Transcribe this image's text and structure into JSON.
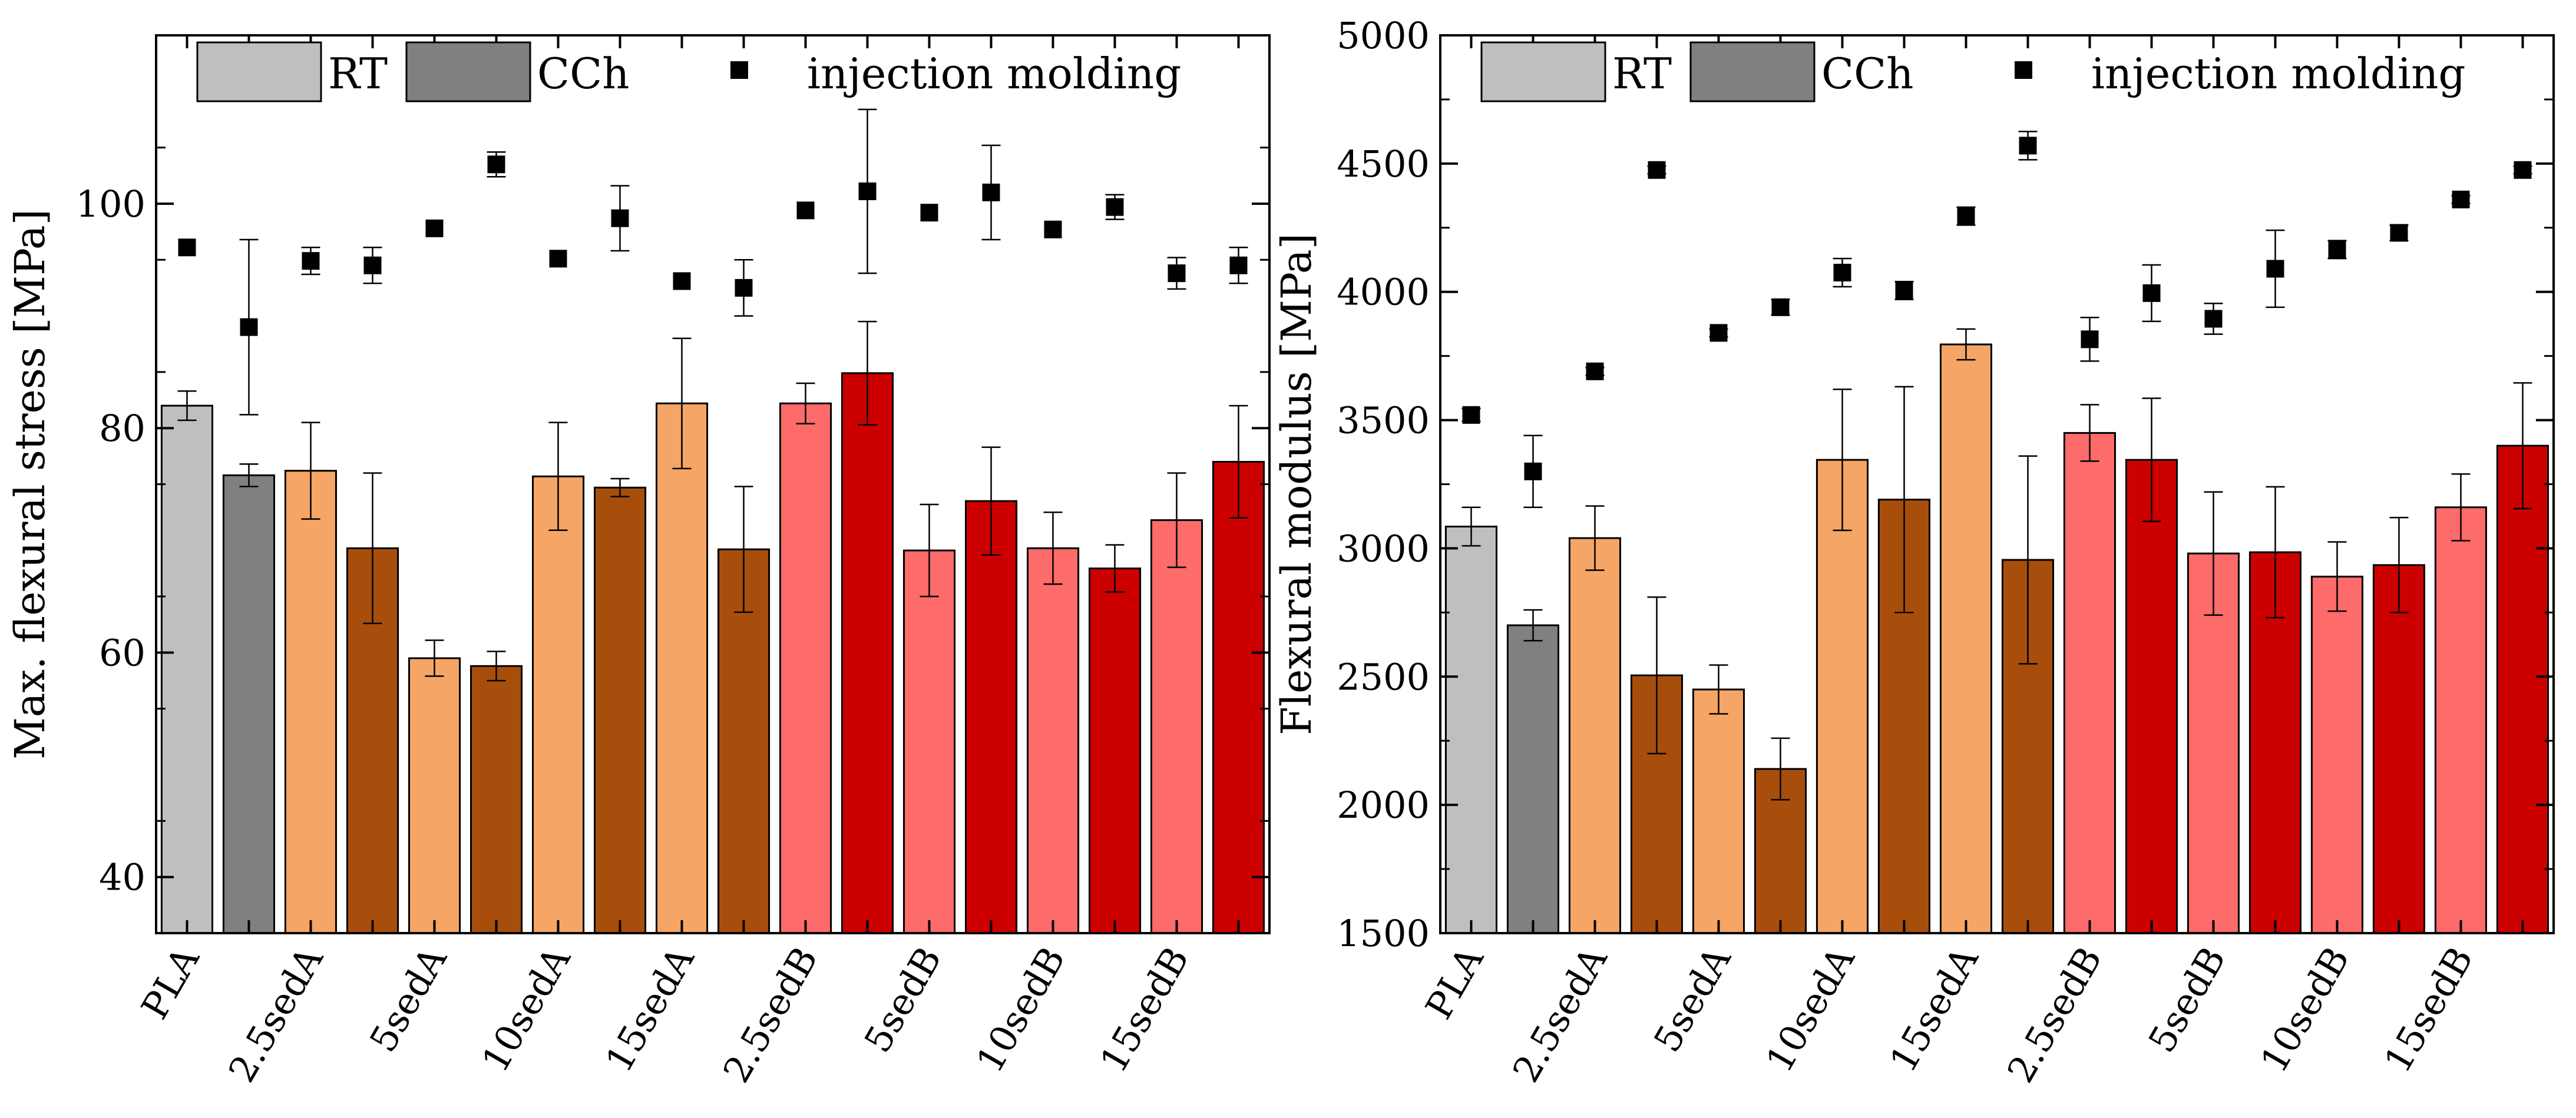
{
  "chart_data": [
    {
      "type": "bar",
      "ylabel": "Max. flexural stress [MPa]",
      "ylim": [
        35,
        115
      ],
      "yticks": [
        40,
        60,
        80,
        100
      ],
      "group_labels": [
        "PLA",
        "2.5sedA",
        "5sedA",
        "10sedA",
        "15sedA",
        "2.5sedB",
        "5sedB",
        "10sedB",
        "15sedB"
      ],
      "legend": {
        "rt": "RT",
        "cch": "CCh",
        "injection": "injection molding"
      },
      "bars": [
        {
          "group": "PLA",
          "cond": "RT",
          "value": 82.0,
          "error": 1.3,
          "color": "#bfbfbf"
        },
        {
          "group": "PLA",
          "cond": "CCh",
          "value": 75.8,
          "error": 1.0,
          "color": "#808080"
        },
        {
          "group": "2.5sedA",
          "cond": "RT",
          "value": 76.2,
          "error": 4.3,
          "color": "#f5a565"
        },
        {
          "group": "2.5sedA",
          "cond": "CCh",
          "value": 69.3,
          "error": 6.7,
          "color": "#a84e0c"
        },
        {
          "group": "5sedA",
          "cond": "RT",
          "value": 59.5,
          "error": 1.6,
          "color": "#f5a565"
        },
        {
          "group": "5sedA",
          "cond": "CCh",
          "value": 58.8,
          "error": 1.3,
          "color": "#a84e0c"
        },
        {
          "group": "10sedA",
          "cond": "RT",
          "value": 75.7,
          "error": 4.8,
          "color": "#f5a565"
        },
        {
          "group": "10sedA",
          "cond": "CCh",
          "value": 74.7,
          "error": 0.8,
          "color": "#a84e0c"
        },
        {
          "group": "15sedA",
          "cond": "RT",
          "value": 82.2,
          "error": 5.8,
          "color": "#f5a565"
        },
        {
          "group": "15sedA",
          "cond": "CCh",
          "value": 69.2,
          "error": 5.6,
          "color": "#a84e0c"
        },
        {
          "group": "2.5sedB",
          "cond": "RT",
          "value": 82.2,
          "error": 1.8,
          "color": "#fd6b6b"
        },
        {
          "group": "2.5sedB",
          "cond": "CCh",
          "value": 84.9,
          "error": 4.6,
          "color": "#cc0000"
        },
        {
          "group": "5sedB",
          "cond": "RT",
          "value": 69.1,
          "error": 4.1,
          "color": "#fd6b6b"
        },
        {
          "group": "5sedB",
          "cond": "CCh",
          "value": 73.5,
          "error": 4.8,
          "color": "#cc0000"
        },
        {
          "group": "10sedB",
          "cond": "RT",
          "value": 69.3,
          "error": 3.2,
          "color": "#fd6b6b"
        },
        {
          "group": "10sedB",
          "cond": "CCh",
          "value": 67.5,
          "error": 2.1,
          "color": "#cc0000"
        },
        {
          "group": "15sedB",
          "cond": "RT",
          "value": 71.8,
          "error": 4.2,
          "color": "#fd6b6b"
        },
        {
          "group": "15sedB",
          "cond": "CCh",
          "value": 77.0,
          "error": 5.0,
          "color": "#cc0000"
        }
      ],
      "injection_points": [
        {
          "value": 96.1,
          "error": 0.3
        },
        {
          "value": 89.0,
          "error": 7.8
        },
        {
          "value": 94.9,
          "error": 1.2
        },
        {
          "value": 94.5,
          "error": 1.6
        },
        {
          "value": 97.8,
          "error": 0.3
        },
        {
          "value": 103.5,
          "error": 1.1
        },
        {
          "value": 95.1,
          "error": 0.3
        },
        {
          "value": 98.7,
          "error": 2.9
        },
        {
          "value": 93.1,
          "error": 0.3
        },
        {
          "value": 92.5,
          "error": 2.5
        },
        {
          "value": 99.4,
          "error": 0.3
        },
        {
          "value": 101.1,
          "error": 7.3
        },
        {
          "value": 99.2,
          "error": 0.3
        },
        {
          "value": 101.0,
          "error": 4.2
        },
        {
          "value": 97.7,
          "error": 0.3
        },
        {
          "value": 99.7,
          "error": 1.1
        },
        {
          "value": 93.8,
          "error": 1.4
        },
        {
          "value": 94.5,
          "error": 1.6
        }
      ]
    },
    {
      "type": "bar",
      "ylabel": "Flexural modulus [MPa]",
      "ylim": [
        1500,
        5000
      ],
      "yticks": [
        1500,
        2000,
        2500,
        3000,
        3500,
        4000,
        4500,
        5000
      ],
      "group_labels": [
        "PLA",
        "2.5sedA",
        "5sedA",
        "10sedA",
        "15sedA",
        "2.5sedB",
        "5sedB",
        "10sedB",
        "15sedB"
      ],
      "legend": {
        "rt": "RT",
        "cch": "CCh",
        "injection": "injection molding"
      },
      "bars": [
        {
          "group": "PLA",
          "cond": "RT",
          "value": 3085,
          "error": 75,
          "color": "#bfbfbf"
        },
        {
          "group": "PLA",
          "cond": "CCh",
          "value": 2700,
          "error": 60,
          "color": "#808080"
        },
        {
          "group": "2.5sedA",
          "cond": "RT",
          "value": 3040,
          "error": 125,
          "color": "#f5a565"
        },
        {
          "group": "2.5sedA",
          "cond": "CCh",
          "value": 2505,
          "error": 305,
          "color": "#a84e0c"
        },
        {
          "group": "5sedA",
          "cond": "RT",
          "value": 2450,
          "error": 95,
          "color": "#f5a565"
        },
        {
          "group": "5sedA",
          "cond": "CCh",
          "value": 2140,
          "error": 120,
          "color": "#a84e0c"
        },
        {
          "group": "10sedA",
          "cond": "RT",
          "value": 3345,
          "error": 275,
          "color": "#f5a565"
        },
        {
          "group": "10sedA",
          "cond": "CCh",
          "value": 3190,
          "error": 440,
          "color": "#a84e0c"
        },
        {
          "group": "15sedA",
          "cond": "RT",
          "value": 3795,
          "error": 60,
          "color": "#f5a565"
        },
        {
          "group": "15sedA",
          "cond": "CCh",
          "value": 2955,
          "error": 405,
          "color": "#a84e0c"
        },
        {
          "group": "2.5sedB",
          "cond": "RT",
          "value": 3450,
          "error": 110,
          "color": "#fd6b6b"
        },
        {
          "group": "2.5sedB",
          "cond": "CCh",
          "value": 3345,
          "error": 240,
          "color": "#cc0000"
        },
        {
          "group": "5sedB",
          "cond": "RT",
          "value": 2980,
          "error": 240,
          "color": "#fd6b6b"
        },
        {
          "group": "5sedB",
          "cond": "CCh",
          "value": 2985,
          "error": 255,
          "color": "#cc0000"
        },
        {
          "group": "10sedB",
          "cond": "RT",
          "value": 2890,
          "error": 135,
          "color": "#fd6b6b"
        },
        {
          "group": "10sedB",
          "cond": "CCh",
          "value": 2935,
          "error": 185,
          "color": "#cc0000"
        },
        {
          "group": "15sedB",
          "cond": "RT",
          "value": 3160,
          "error": 130,
          "color": "#fd6b6b"
        },
        {
          "group": "15sedB",
          "cond": "CCh",
          "value": 3400,
          "error": 245,
          "color": "#cc0000"
        }
      ],
      "injection_points": [
        {
          "value": 3520,
          "error": 25
        },
        {
          "value": 3300,
          "error": 140
        },
        {
          "value": 3690,
          "error": 15
        },
        {
          "value": 4475,
          "error": 15
        },
        {
          "value": 3840,
          "error": 15
        },
        {
          "value": 3940,
          "error": 30
        },
        {
          "value": 4075,
          "error": 55
        },
        {
          "value": 4005,
          "error": 35
        },
        {
          "value": 4295,
          "error": 35
        },
        {
          "value": 4570,
          "error": 55
        },
        {
          "value": 3815,
          "error": 85
        },
        {
          "value": 3995,
          "error": 110
        },
        {
          "value": 3895,
          "error": 60
        },
        {
          "value": 4090,
          "error": 150
        },
        {
          "value": 4165,
          "error": 35
        },
        {
          "value": 4230,
          "error": 30
        },
        {
          "value": 4360,
          "error": 15
        },
        {
          "value": 4475,
          "error": 15
        }
      ]
    }
  ]
}
